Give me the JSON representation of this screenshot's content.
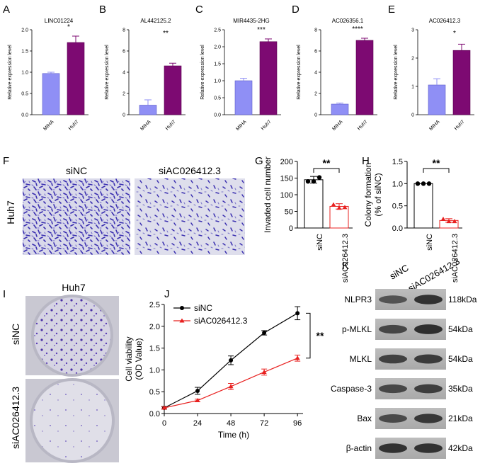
{
  "colors": {
    "periwinkle": "#8F8FF5",
    "purple": "#7D0A72",
    "black": "#000000",
    "red": "#E8201F",
    "stain": "#3A2FB0",
    "dish_bg": "#DCDCE6"
  },
  "panels": {
    "top": [
      {
        "letter": "A",
        "title": "LINC01224",
        "ylabel": "Relative expression level",
        "sig": "*",
        "ylim": [
          0,
          2.0
        ],
        "yticks": [
          "0.0",
          "0.5",
          "1.0",
          "1.5",
          "2.0"
        ]
      },
      {
        "letter": "B",
        "title": "AL442125.2",
        "ylabel": "Relative expression level",
        "sig": "**",
        "ylim": [
          0,
          8
        ],
        "yticks": [
          "0",
          "2",
          "4",
          "6",
          "8"
        ]
      },
      {
        "letter": "C",
        "title": "MIR4435-2HG",
        "ylabel": "Relative expression level",
        "sig": "***",
        "ylim": [
          0,
          2.5
        ],
        "yticks": [
          "0.0",
          "0.5",
          "1.0",
          "1.5",
          "2.0",
          "2.5"
        ]
      },
      {
        "letter": "D",
        "title": "AC026356.1",
        "ylabel": "Relative expression level",
        "sig": "****",
        "ylim": [
          0,
          8
        ],
        "yticks": [
          "0",
          "2",
          "4",
          "6",
          "8"
        ]
      },
      {
        "letter": "E",
        "title": "AC026412.3",
        "ylabel": "Relative expression level",
        "sig": "*",
        "ylim": [
          0,
          3
        ],
        "yticks": [
          "0",
          "1",
          "2",
          "3"
        ]
      }
    ],
    "F": {
      "letter": "F",
      "col1": "siNC",
      "col2": "siAC026412.3",
      "row": "Huh7"
    },
    "G": {
      "letter": "G",
      "ylabel": "Invaded cell number",
      "sig": "**",
      "yticks": [
        "0",
        "50",
        "100",
        "150",
        "200"
      ],
      "xlabels": [
        "siNC",
        "siAC026412.3"
      ]
    },
    "H": {
      "letter": "H",
      "ylabel": "Colony formation",
      "ylabel2": "(% of siNC)",
      "sig": "**",
      "yticks": [
        "0.0",
        "0.5",
        "1.0",
        "1.5"
      ],
      "xlabels": [
        "siNC",
        "siAC026412.3"
      ]
    },
    "I": {
      "letter": "I",
      "title": "Huh7",
      "row1": "siNC",
      "row2": "siAC026412.3"
    },
    "J": {
      "letter": "J",
      "ylabel": "Cell viability",
      "ylabel2": "(OD Value)",
      "xlabel": "Time (h)",
      "sig": "**",
      "yticks": [
        "0.0",
        "0.5",
        "1.0",
        "1.5",
        "2.0",
        "2.5"
      ],
      "xticks": [
        "0",
        "24",
        "48",
        "72",
        "96"
      ]
    },
    "K": {
      "letter": "K",
      "col1": "siNC",
      "col2": "siAC026412.3",
      "bands": [
        {
          "name": "NLPR3",
          "size": "118kDa"
        },
        {
          "name": "p-MLKL",
          "size": "54kDa"
        },
        {
          "name": "MLKL",
          "size": "54kDa"
        },
        {
          "name": "Caspase-3",
          "size": "35kDa"
        },
        {
          "name": "Bax",
          "size": "21kDa"
        },
        {
          "name": "β-actin",
          "size": "42kDa"
        }
      ]
    }
  },
  "chart_data": [
    {
      "type": "bar",
      "title": "LINC01224",
      "ylabel": "Relative expression level",
      "categories": [
        "MIHA",
        "Huh7"
      ],
      "values": [
        0.97,
        1.7
      ],
      "errors": [
        0.03,
        0.15
      ],
      "ylim": [
        0,
        2.0
      ]
    },
    {
      "type": "bar",
      "title": "AL442125.2",
      "ylabel": "Relative expression level",
      "categories": [
        "MIHA",
        "Huh7"
      ],
      "values": [
        0.9,
        4.6
      ],
      "errors": [
        0.5,
        0.25
      ],
      "ylim": [
        0,
        8
      ]
    },
    {
      "type": "bar",
      "title": "MIR4435-2HG",
      "ylabel": "Relative expression level",
      "categories": [
        "MIHA",
        "Huh7"
      ],
      "values": [
        1.0,
        2.15
      ],
      "errors": [
        0.07,
        0.08
      ],
      "ylim": [
        0,
        2.5
      ]
    },
    {
      "type": "bar",
      "title": "AC026356.1",
      "ylabel": "Relative expression level",
      "categories": [
        "MIHA",
        "Huh7"
      ],
      "values": [
        1.0,
        7.0
      ],
      "errors": [
        0.1,
        0.2
      ],
      "ylim": [
        0,
        8
      ]
    },
    {
      "type": "bar",
      "title": "AC026412.3",
      "ylabel": "Relative expression level",
      "categories": [
        "MIHA",
        "Huh7"
      ],
      "values": [
        1.05,
        2.27
      ],
      "errors": [
        0.22,
        0.22
      ],
      "ylim": [
        0,
        3
      ]
    },
    {
      "type": "bar",
      "ylabel": "Invaded cell number",
      "categories": [
        "siNC",
        "siAC026412.3"
      ],
      "values": [
        145,
        65
      ],
      "errors": [
        10,
        8
      ],
      "points": [
        [
          140,
          140,
          152
        ],
        [
          70,
          60,
          62
        ]
      ],
      "ylim": [
        0,
        200
      ]
    },
    {
      "type": "bar",
      "ylabel": "Colony formation (% of siNC)",
      "categories": [
        "siNC",
        "siAC026412.3"
      ],
      "values": [
        1.0,
        0.17
      ],
      "errors": [
        0.0,
        0.04
      ],
      "points": [
        [
          1.0,
          1.0,
          1.0
        ],
        [
          0.2,
          0.15,
          0.15
        ]
      ],
      "ylim": [
        0,
        1.5
      ]
    },
    {
      "type": "line",
      "ylabel": "Cell viability (OD Value)",
      "xlabel": "Time (h)",
      "x": [
        0,
        24,
        48,
        72,
        96
      ],
      "series": [
        {
          "name": "siNC",
          "values": [
            0.13,
            0.52,
            1.22,
            1.85,
            2.3
          ],
          "errors": [
            0.03,
            0.08,
            0.1,
            0.05,
            0.15
          ]
        },
        {
          "name": "siAC026412.3",
          "values": [
            0.13,
            0.3,
            0.62,
            0.95,
            1.27
          ],
          "errors": [
            0.02,
            0.03,
            0.07,
            0.07,
            0.07
          ]
        }
      ],
      "xlim": [
        0,
        100
      ],
      "ylim": [
        0,
        2.5
      ]
    }
  ]
}
